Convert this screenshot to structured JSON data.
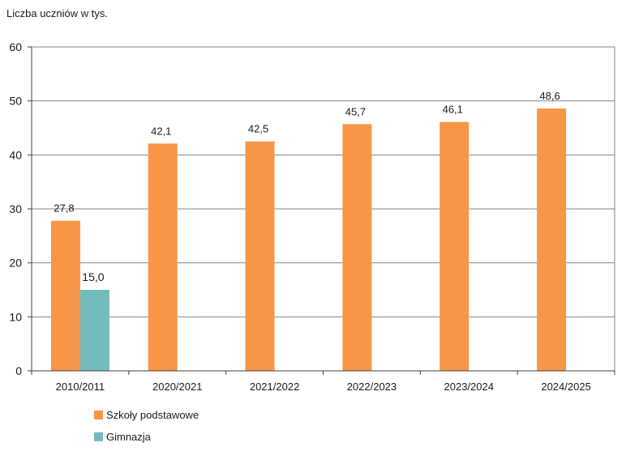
{
  "chart_data": {
    "type": "bar",
    "title": "",
    "ylabel": "Liczba uczniów w tys.",
    "xlabel": "",
    "ylim": [
      0,
      60
    ],
    "yticks": [
      "0",
      "10",
      "20",
      "30",
      "40",
      "50",
      "60"
    ],
    "categories": [
      "2010/2011",
      "2020/2021",
      "2021/2022",
      "2022/2023",
      "2023/2024",
      "2024/2025"
    ],
    "series": [
      {
        "name": "Szkoły podstawowe",
        "color": "#F79646",
        "values": [
          27.8,
          42.1,
          42.5,
          45.7,
          46.1,
          48.6
        ],
        "labels": [
          "27,8",
          "42,1",
          "42,5",
          "45,7",
          "46,1",
          "48,6"
        ]
      },
      {
        "name": "Gimnazja",
        "color": "#72BCBE",
        "values": [
          15.0,
          null,
          null,
          null,
          null,
          null
        ],
        "labels": [
          "15,0",
          null,
          null,
          null,
          null,
          null
        ]
      }
    ],
    "legend_position": "bottom-left",
    "grid": true
  }
}
